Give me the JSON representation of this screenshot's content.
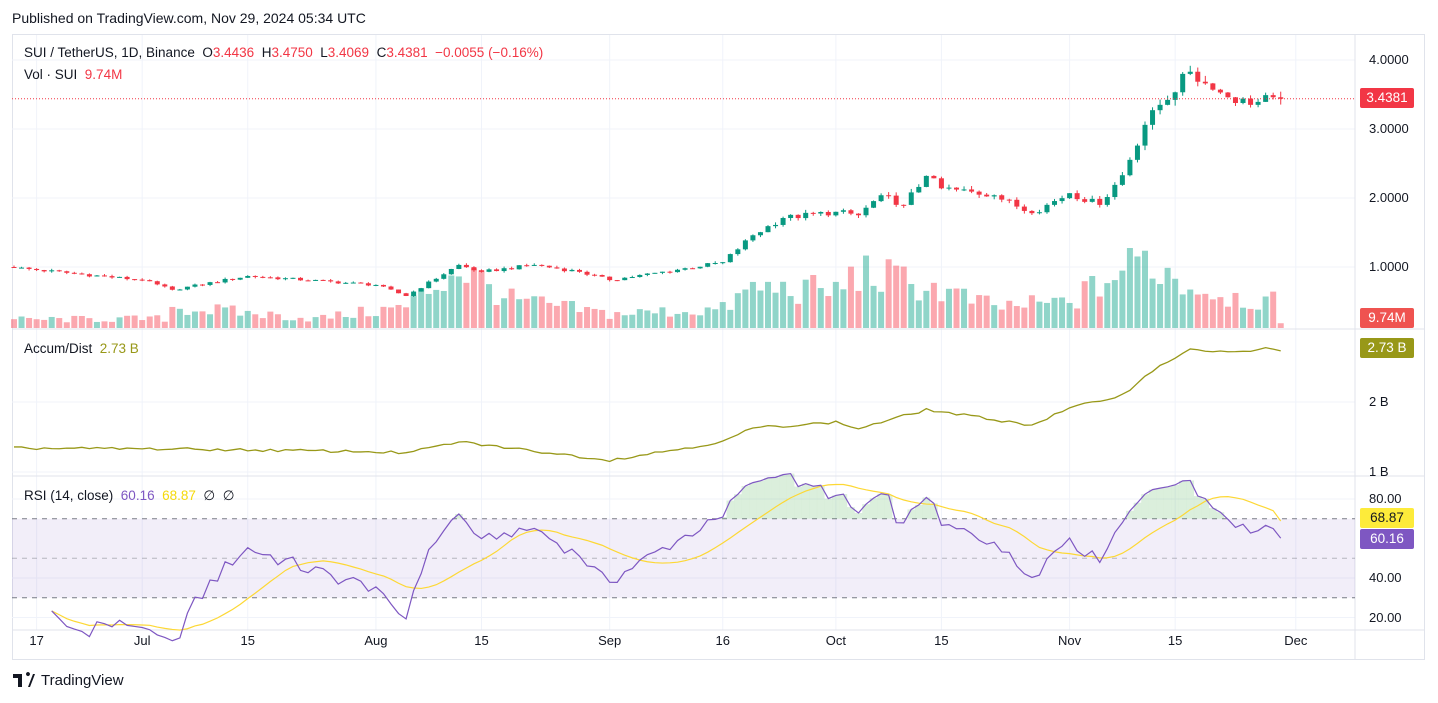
{
  "published": "Published on TradingView.com, Nov 29, 2024 05:34 UTC",
  "legend": {
    "symbol": "SUI / TetherUS, 1D, Binance",
    "o_label": "O",
    "o": "3.4436",
    "h_label": "H",
    "h": "3.4750",
    "l_label": "L",
    "l": "3.4069",
    "c_label": "C",
    "c": "3.4381",
    "change": "−0.0055 (−0.16%)",
    "vol_label": "Vol · SUI",
    "vol": "9.74M"
  },
  "ad_legend": {
    "label": "Accum/Dist",
    "value": "2.73 B"
  },
  "rsi_legend": {
    "label": "RSI (14, close)",
    "value": "60.16",
    "ma": "68.87",
    "e1": "∅",
    "e2": "∅"
  },
  "tags": {
    "price": "3.4381",
    "volume": "9.74M",
    "ad": "2.73 B",
    "rsi_ma": "68.87",
    "rsi": "60.16"
  },
  "footer": {
    "brand": "TradingView"
  },
  "colors": {
    "up": "#089981",
    "down": "#f23645",
    "ad": "#989818",
    "rsi": "#7e57c2",
    "rsi_ma": "#fdd835"
  },
  "chart_data": {
    "type": "candlestick",
    "symbol": "SUI/USDT",
    "interval": "1D",
    "first_date": "2024-06-14",
    "last_date": "2024-11-29",
    "price_axis": {
      "ticks": [
        "4.0000",
        "3.0000",
        "2.0000",
        "1.0000"
      ],
      "values": [
        4,
        3,
        2,
        1
      ]
    },
    "ad_axis": {
      "ticks": [
        "2 B",
        "1 B"
      ],
      "values": [
        2,
        1
      ]
    },
    "rsi_axis": {
      "ticks": [
        "80.00",
        "40.00",
        "20.00"
      ],
      "values": [
        80,
        40,
        20
      ],
      "bands": [
        70,
        50,
        30
      ]
    },
    "time_ticks": [
      {
        "label": "17",
        "day": 3
      },
      {
        "label": "Jul",
        "day": 17
      },
      {
        "label": "15",
        "day": 31
      },
      {
        "label": "Aug",
        "day": 48
      },
      {
        "label": "15",
        "day": 62
      },
      {
        "label": "Sep",
        "day": 79
      },
      {
        "label": "16",
        "day": 94
      },
      {
        "label": "Oct",
        "day": 109
      },
      {
        "label": "15",
        "day": 123
      },
      {
        "label": "Nov",
        "day": 140
      },
      {
        "label": "15",
        "day": 154
      },
      {
        "label": "Dec",
        "day": 170
      }
    ],
    "close_keypoints": [
      [
        0,
        0.99
      ],
      [
        17,
        0.81
      ],
      [
        21,
        0.67
      ],
      [
        31,
        0.87
      ],
      [
        48,
        0.74
      ],
      [
        52,
        0.58
      ],
      [
        59,
        1.03
      ],
      [
        62,
        0.93
      ],
      [
        69,
        1.03
      ],
      [
        75,
        0.93
      ],
      [
        79,
        0.81
      ],
      [
        88,
        0.96
      ],
      [
        94,
        1.07
      ],
      [
        98,
        1.46
      ],
      [
        102,
        1.71
      ],
      [
        109,
        1.8
      ],
      [
        112,
        1.75
      ],
      [
        115,
        2.04
      ],
      [
        118,
        1.9
      ],
      [
        121,
        2.32
      ],
      [
        123,
        2.14
      ],
      [
        130,
        2.04
      ],
      [
        135,
        1.78
      ],
      [
        140,
        2.07
      ],
      [
        144,
        1.9
      ],
      [
        147,
        2.33
      ],
      [
        150,
        3.06
      ],
      [
        152,
        3.35
      ],
      [
        156,
        3.83
      ],
      [
        159,
        3.57
      ],
      [
        164,
        3.35
      ],
      [
        167,
        3.46
      ],
      [
        168,
        3.4381
      ]
    ],
    "volume_keypoints_M": [
      [
        0,
        18
      ],
      [
        20,
        20
      ],
      [
        21,
        45
      ],
      [
        40,
        20
      ],
      [
        52,
        45
      ],
      [
        59,
        130
      ],
      [
        66,
        60
      ],
      [
        79,
        30
      ],
      [
        94,
        40
      ],
      [
        98,
        85
      ],
      [
        109,
        80
      ],
      [
        112,
        120
      ],
      [
        121,
        90
      ],
      [
        130,
        45
      ],
      [
        140,
        55
      ],
      [
        150,
        150
      ],
      [
        156,
        90
      ],
      [
        164,
        60
      ],
      [
        167,
        55
      ],
      [
        168,
        9.74
      ]
    ],
    "ad_keypoints_B": [
      [
        0,
        1.34
      ],
      [
        20,
        1.33
      ],
      [
        48,
        1.29
      ],
      [
        52,
        1.27
      ],
      [
        59,
        1.43
      ],
      [
        79,
        1.17
      ],
      [
        94,
        1.43
      ],
      [
        98,
        1.63
      ],
      [
        109,
        1.71
      ],
      [
        112,
        1.62
      ],
      [
        121,
        1.89
      ],
      [
        135,
        1.67
      ],
      [
        140,
        1.91
      ],
      [
        147,
        2.1
      ],
      [
        152,
        2.53
      ],
      [
        156,
        2.74
      ],
      [
        164,
        2.71
      ],
      [
        166,
        2.77
      ],
      [
        168,
        2.73
      ]
    ],
    "last_close": 3.4381,
    "last_volume_M": 9.74,
    "last_ad_B": 2.73,
    "last_rsi": 60.16,
    "last_rsi_ma": 68.87
  }
}
